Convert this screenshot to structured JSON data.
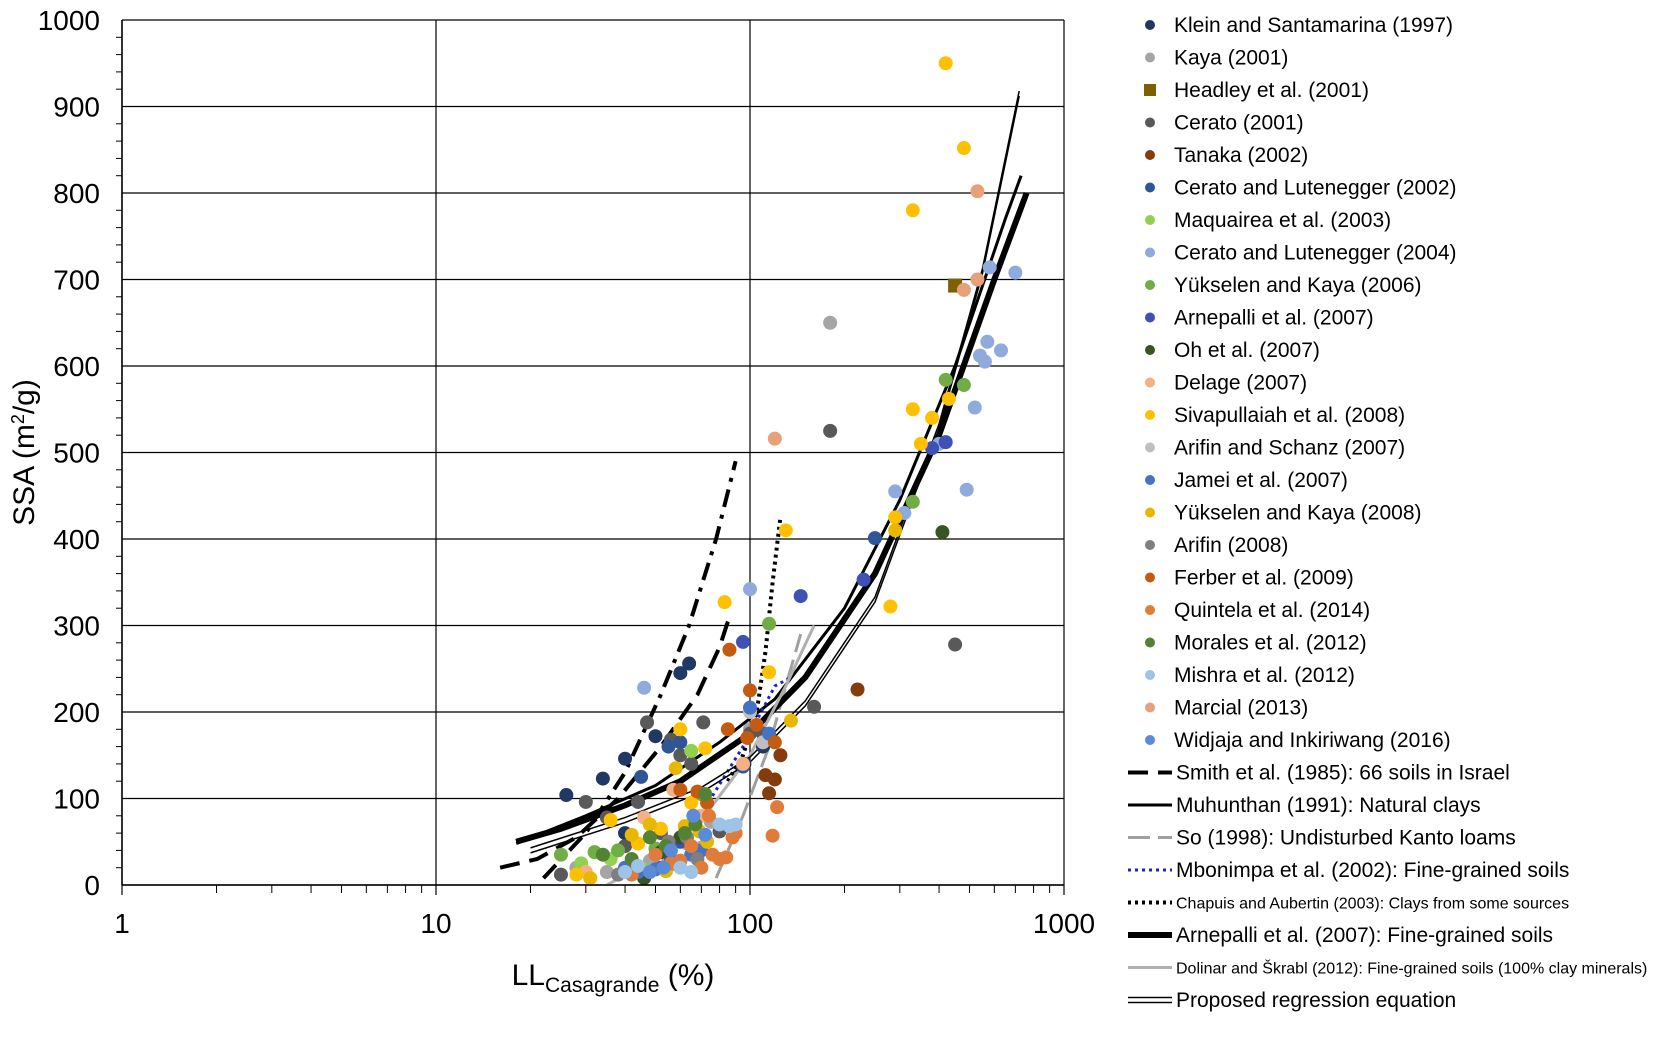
{
  "chart_data": {
    "type": "scatter",
    "xscale": "log",
    "xlim": [
      1,
      1000
    ],
    "ylim": [
      0,
      1000
    ],
    "x_ticks": [
      "1",
      "10",
      "100",
      "1000"
    ],
    "y_ticks": [
      "0",
      "100",
      "200",
      "300",
      "400",
      "500",
      "600",
      "700",
      "800",
      "900",
      "1000"
    ],
    "xlabel": {
      "main": "LL",
      "sub": "Casagrande",
      "suffix": " (%)"
    },
    "ylabel": {
      "main": "SSA (m",
      "sup": "2",
      "suffix": "/g)"
    },
    "grid": true,
    "legend_position": "right",
    "series": [
      {
        "name": "Klein and Santamarina (1997)",
        "color": "#1f3864",
        "marker": "circle",
        "points": [
          [
            26,
            104
          ],
          [
            40,
            146
          ],
          [
            50,
            172
          ],
          [
            60,
            245
          ],
          [
            64,
            256
          ],
          [
            40,
            60
          ],
          [
            34,
            123
          ],
          [
            96,
            140
          ],
          [
            110,
            160
          ]
        ]
      },
      {
        "name": "Kaya (2001)",
        "color": "#a5a5a5",
        "marker": "circle",
        "points": [
          [
            28,
            20
          ],
          [
            35,
            15
          ],
          [
            45,
            18
          ],
          [
            48,
            28
          ],
          [
            55,
            30
          ],
          [
            63,
            48
          ],
          [
            70,
            43
          ],
          [
            75,
            73
          ],
          [
            100,
            180
          ],
          [
            180,
            650
          ]
        ]
      },
      {
        "name": "Headley et al. (2001)",
        "color": "#7f6000",
        "marker": "square",
        "points": [
          [
            450,
            693
          ]
        ]
      },
      {
        "name": "Cerato (2001)",
        "color": "#595959",
        "marker": "circle",
        "points": [
          [
            25,
            12
          ],
          [
            30,
            96
          ],
          [
            35,
            78
          ],
          [
            40,
            45
          ],
          [
            44,
            96
          ],
          [
            47,
            188
          ],
          [
            52,
            60
          ],
          [
            56,
            168
          ],
          [
            60,
            150
          ],
          [
            65,
            140
          ],
          [
            71,
            188
          ],
          [
            80,
            62
          ],
          [
            100,
            175
          ],
          [
            110,
            175
          ],
          [
            160,
            206
          ],
          [
            180,
            525
          ],
          [
            450,
            278
          ]
        ]
      },
      {
        "name": "Tanaka (2002)",
        "color": "#843c0c",
        "marker": "circle",
        "points": [
          [
            120,
            122
          ],
          [
            125,
            150
          ],
          [
            115,
            106
          ],
          [
            112,
            127
          ],
          [
            220,
            226
          ]
        ]
      },
      {
        "name": "Cerato and Lutenegger (2002)",
        "color": "#2f5597",
        "marker": "circle",
        "points": [
          [
            55,
            160
          ],
          [
            60,
            165
          ],
          [
            45,
            125
          ],
          [
            95,
            137
          ],
          [
            250,
            401
          ]
        ]
      },
      {
        "name": "Maquairea et al. (2003)",
        "color": "#92d050",
        "marker": "circle",
        "points": [
          [
            29,
            25
          ],
          [
            36,
            30
          ],
          [
            45,
            20
          ],
          [
            65,
            155
          ]
        ]
      },
      {
        "name": "Cerato and Lutenegger (2004)",
        "color": "#8faadc",
        "marker": "circle",
        "points": [
          [
            100,
            342
          ],
          [
            290,
            455
          ],
          [
            310,
            430
          ],
          [
            400,
            510
          ],
          [
            490,
            457
          ],
          [
            520,
            552
          ],
          [
            540,
            612
          ],
          [
            560,
            605
          ],
          [
            570,
            628
          ],
          [
            580,
            714
          ],
          [
            630,
            618
          ],
          [
            700,
            708
          ],
          [
            46,
            228
          ]
        ]
      },
      {
        "name": "Yükselen and Kaya (2006)",
        "color": "#70ad47",
        "marker": "circle",
        "points": [
          [
            25,
            35
          ],
          [
            32,
            38
          ],
          [
            38,
            40
          ],
          [
            50,
            42
          ],
          [
            70,
            105
          ],
          [
            115,
            302
          ],
          [
            330,
            443
          ],
          [
            420,
            584
          ],
          [
            480,
            578
          ]
        ]
      },
      {
        "name": "Arnepalli et al. (2007)",
        "color": "#3f51b5",
        "marker": "circle",
        "points": [
          [
            52,
            20
          ],
          [
            56,
            30
          ],
          [
            60,
            50
          ],
          [
            95,
            281
          ],
          [
            145,
            334
          ],
          [
            230,
            353
          ],
          [
            380,
            505
          ],
          [
            420,
            512
          ]
        ]
      },
      {
        "name": "Oh et al. (2007)",
        "color": "#375623",
        "marker": "circle",
        "points": [
          [
            46,
            8
          ],
          [
            52,
            38
          ],
          [
            60,
            55
          ],
          [
            410,
            408
          ]
        ]
      },
      {
        "name": "Delage (2007)",
        "color": "#f4b183",
        "marker": "circle",
        "points": [
          [
            30,
            15
          ],
          [
            46,
            78
          ],
          [
            57,
            110
          ],
          [
            70,
            80
          ],
          [
            95,
            140
          ]
        ]
      },
      {
        "name": "Sivapullaiah et al. (2008)",
        "color": "#ffc000",
        "marker": "circle",
        "points": [
          [
            28,
            12
          ],
          [
            36,
            75
          ],
          [
            44,
            48
          ],
          [
            52,
            65
          ],
          [
            60,
            180
          ],
          [
            65,
            95
          ],
          [
            72,
            158
          ],
          [
            83,
            327
          ],
          [
            115,
            246
          ],
          [
            130,
            410
          ],
          [
            280,
            322
          ],
          [
            290,
            425
          ],
          [
            330,
            780
          ],
          [
            330,
            550
          ],
          [
            350,
            510
          ],
          [
            380,
            540
          ],
          [
            420,
            950
          ],
          [
            430,
            562
          ],
          [
            480,
            852
          ]
        ]
      },
      {
        "name": "Arifin and Schanz (2007)",
        "color": "#bfbfbf",
        "marker": "circle",
        "points": [
          [
            100,
            200
          ],
          [
            110,
            165
          ]
        ]
      },
      {
        "name": "Jamei et al. (2007)",
        "color": "#4472c4",
        "marker": "circle",
        "points": [
          [
            40,
            20
          ],
          [
            44,
            15
          ],
          [
            50,
            18
          ],
          [
            55,
            22
          ],
          [
            60,
            28
          ],
          [
            65,
            35
          ],
          [
            70,
            40
          ],
          [
            100,
            205
          ],
          [
            115,
            175
          ]
        ]
      },
      {
        "name": "Yükselen and Kaya (2008)",
        "color": "#e8b800",
        "marker": "circle",
        "points": [
          [
            31,
            8
          ],
          [
            42,
            58
          ],
          [
            48,
            70
          ],
          [
            54,
            16
          ],
          [
            58,
            135
          ],
          [
            62,
            68
          ],
          [
            69,
            62
          ],
          [
            73,
            50
          ],
          [
            135,
            190
          ],
          [
            290,
            410
          ]
        ]
      },
      {
        "name": "Arifin (2008)",
        "color": "#7f7f7f",
        "marker": "circle",
        "points": [
          [
            38,
            12
          ],
          [
            55,
            50
          ],
          [
            63,
            55
          ],
          [
            68,
            30
          ]
        ]
      },
      {
        "name": "Ferber et al. (2009)",
        "color": "#c55a11",
        "marker": "circle",
        "points": [
          [
            60,
            110
          ],
          [
            68,
            108
          ],
          [
            73,
            95
          ],
          [
            85,
            180
          ],
          [
            86,
            272
          ],
          [
            98,
            170
          ],
          [
            100,
            225
          ],
          [
            105,
            185
          ],
          [
            120,
            165
          ]
        ]
      },
      {
        "name": "Quintela et al. (2014)",
        "color": "#e07b39",
        "marker": "circle",
        "points": [
          [
            42,
            12
          ],
          [
            50,
            35
          ],
          [
            56,
            25
          ],
          [
            60,
            28
          ],
          [
            65,
            45
          ],
          [
            70,
            20
          ],
          [
            76,
            35
          ],
          [
            80,
            30
          ],
          [
            84,
            32
          ],
          [
            90,
            60
          ],
          [
            118,
            57
          ],
          [
            122,
            90
          ],
          [
            88,
            55
          ],
          [
            74,
            80
          ]
        ]
      },
      {
        "name": "Morales et al. (2012)",
        "color": "#548235",
        "marker": "circle",
        "points": [
          [
            34,
            35
          ],
          [
            42,
            30
          ],
          [
            48,
            55
          ],
          [
            54,
            45
          ],
          [
            62,
            60
          ],
          [
            67,
            70
          ],
          [
            72,
            105
          ]
        ]
      },
      {
        "name": "Mishra et al. (2012)",
        "color": "#9dc3e6",
        "marker": "circle",
        "points": [
          [
            40,
            15
          ],
          [
            44,
            22
          ],
          [
            60,
            20
          ],
          [
            65,
            15
          ],
          [
            80,
            70
          ],
          [
            86,
            68
          ],
          [
            90,
            70
          ]
        ]
      },
      {
        "name": "Marcial (2013)",
        "color": "#e6a07a",
        "marker": "circle",
        "points": [
          [
            120,
            516
          ],
          [
            480,
            688
          ],
          [
            530,
            802
          ],
          [
            530,
            700
          ]
        ]
      },
      {
        "name": "Widjaja and Inkiriwang (2016)",
        "color": "#5b8bd6",
        "marker": "circle",
        "points": [
          [
            48,
            15
          ],
          [
            53,
            20
          ],
          [
            56,
            40
          ],
          [
            66,
            80
          ],
          [
            72,
            58
          ]
        ]
      }
    ],
    "curves": [
      {
        "name": "Smith et al. (1985): 66 soils in Israel",
        "style": "dashed-black",
        "points": [
          [
            16,
            20
          ],
          [
            21,
            30
          ],
          [
            28,
            55
          ],
          [
            38,
            100
          ],
          [
            52,
            160
          ],
          [
            68,
            220
          ],
          [
            80,
            275
          ],
          [
            86,
            310
          ]
        ]
      },
      {
        "name": "",
        "style": "dashdot-black",
        "points": [
          [
            22,
            8
          ],
          [
            30,
            60
          ],
          [
            40,
            130
          ],
          [
            52,
            220
          ],
          [
            64,
            300
          ],
          [
            78,
            400
          ],
          [
            90,
            490
          ]
        ]
      },
      {
        "name": "Muhunthan (1991): Natural clays",
        "style": "solid-black-medium",
        "points": [
          [
            18,
            48
          ],
          [
            30,
            80
          ],
          [
            50,
            115
          ],
          [
            80,
            165
          ],
          [
            120,
            215
          ],
          [
            200,
            320
          ],
          [
            300,
            445
          ],
          [
            450,
            600
          ],
          [
            650,
            770
          ],
          [
            730,
            820
          ]
        ]
      },
      {
        "name": "So (1998): Undisturbed Kanto loams",
        "style": "dash-gray",
        "points": [
          [
            78,
            8
          ],
          [
            95,
            80
          ],
          [
            115,
            160
          ],
          [
            130,
            230
          ],
          [
            145,
            290
          ]
        ]
      },
      {
        "name": "Mbonimpa et al. (2002): Fine-grained soils",
        "style": "dotted-blue",
        "points": [
          [
            60,
            50
          ],
          [
            75,
            100
          ],
          [
            95,
            160
          ],
          [
            120,
            230
          ],
          [
            135,
            240
          ]
        ]
      },
      {
        "name": "Chapuis and Aubertin (2003): Clays from some sources",
        "style": "dotted-black",
        "points": [
          [
            85,
            120
          ],
          [
            95,
            150
          ],
          [
            105,
            200
          ],
          [
            112,
            270
          ],
          [
            118,
            350
          ],
          [
            125,
            425
          ]
        ]
      },
      {
        "name": "Arnepalli et al. (2007): Fine-grained soils",
        "style": "solid-black-thick",
        "points": [
          [
            18,
            50
          ],
          [
            25,
            65
          ],
          [
            40,
            92
          ],
          [
            60,
            120
          ],
          [
            100,
            175
          ],
          [
            150,
            240
          ],
          [
            250,
            360
          ],
          [
            400,
            520
          ],
          [
            600,
            700
          ],
          [
            760,
            800
          ]
        ]
      },
      {
        "name": "Dolinar and Škrabl (2012): Fine-grained soils (100% clay minerals)",
        "style": "solid-gray",
        "points": [
          [
            35,
            0
          ],
          [
            50,
            30
          ],
          [
            70,
            75
          ],
          [
            100,
            150
          ],
          [
            130,
            230
          ],
          [
            160,
            300
          ]
        ]
      },
      {
        "name": "Proposed regression equation",
        "style": "double-line",
        "points": [
          [
            20,
            40
          ],
          [
            40,
            75
          ],
          [
            70,
            110
          ],
          [
            100,
            145
          ],
          [
            150,
            210
          ],
          [
            250,
            330
          ],
          [
            400,
            530
          ],
          [
            550,
            710
          ],
          [
            720,
            915
          ]
        ]
      }
    ],
    "legend_partial_top": "(...)"
  }
}
